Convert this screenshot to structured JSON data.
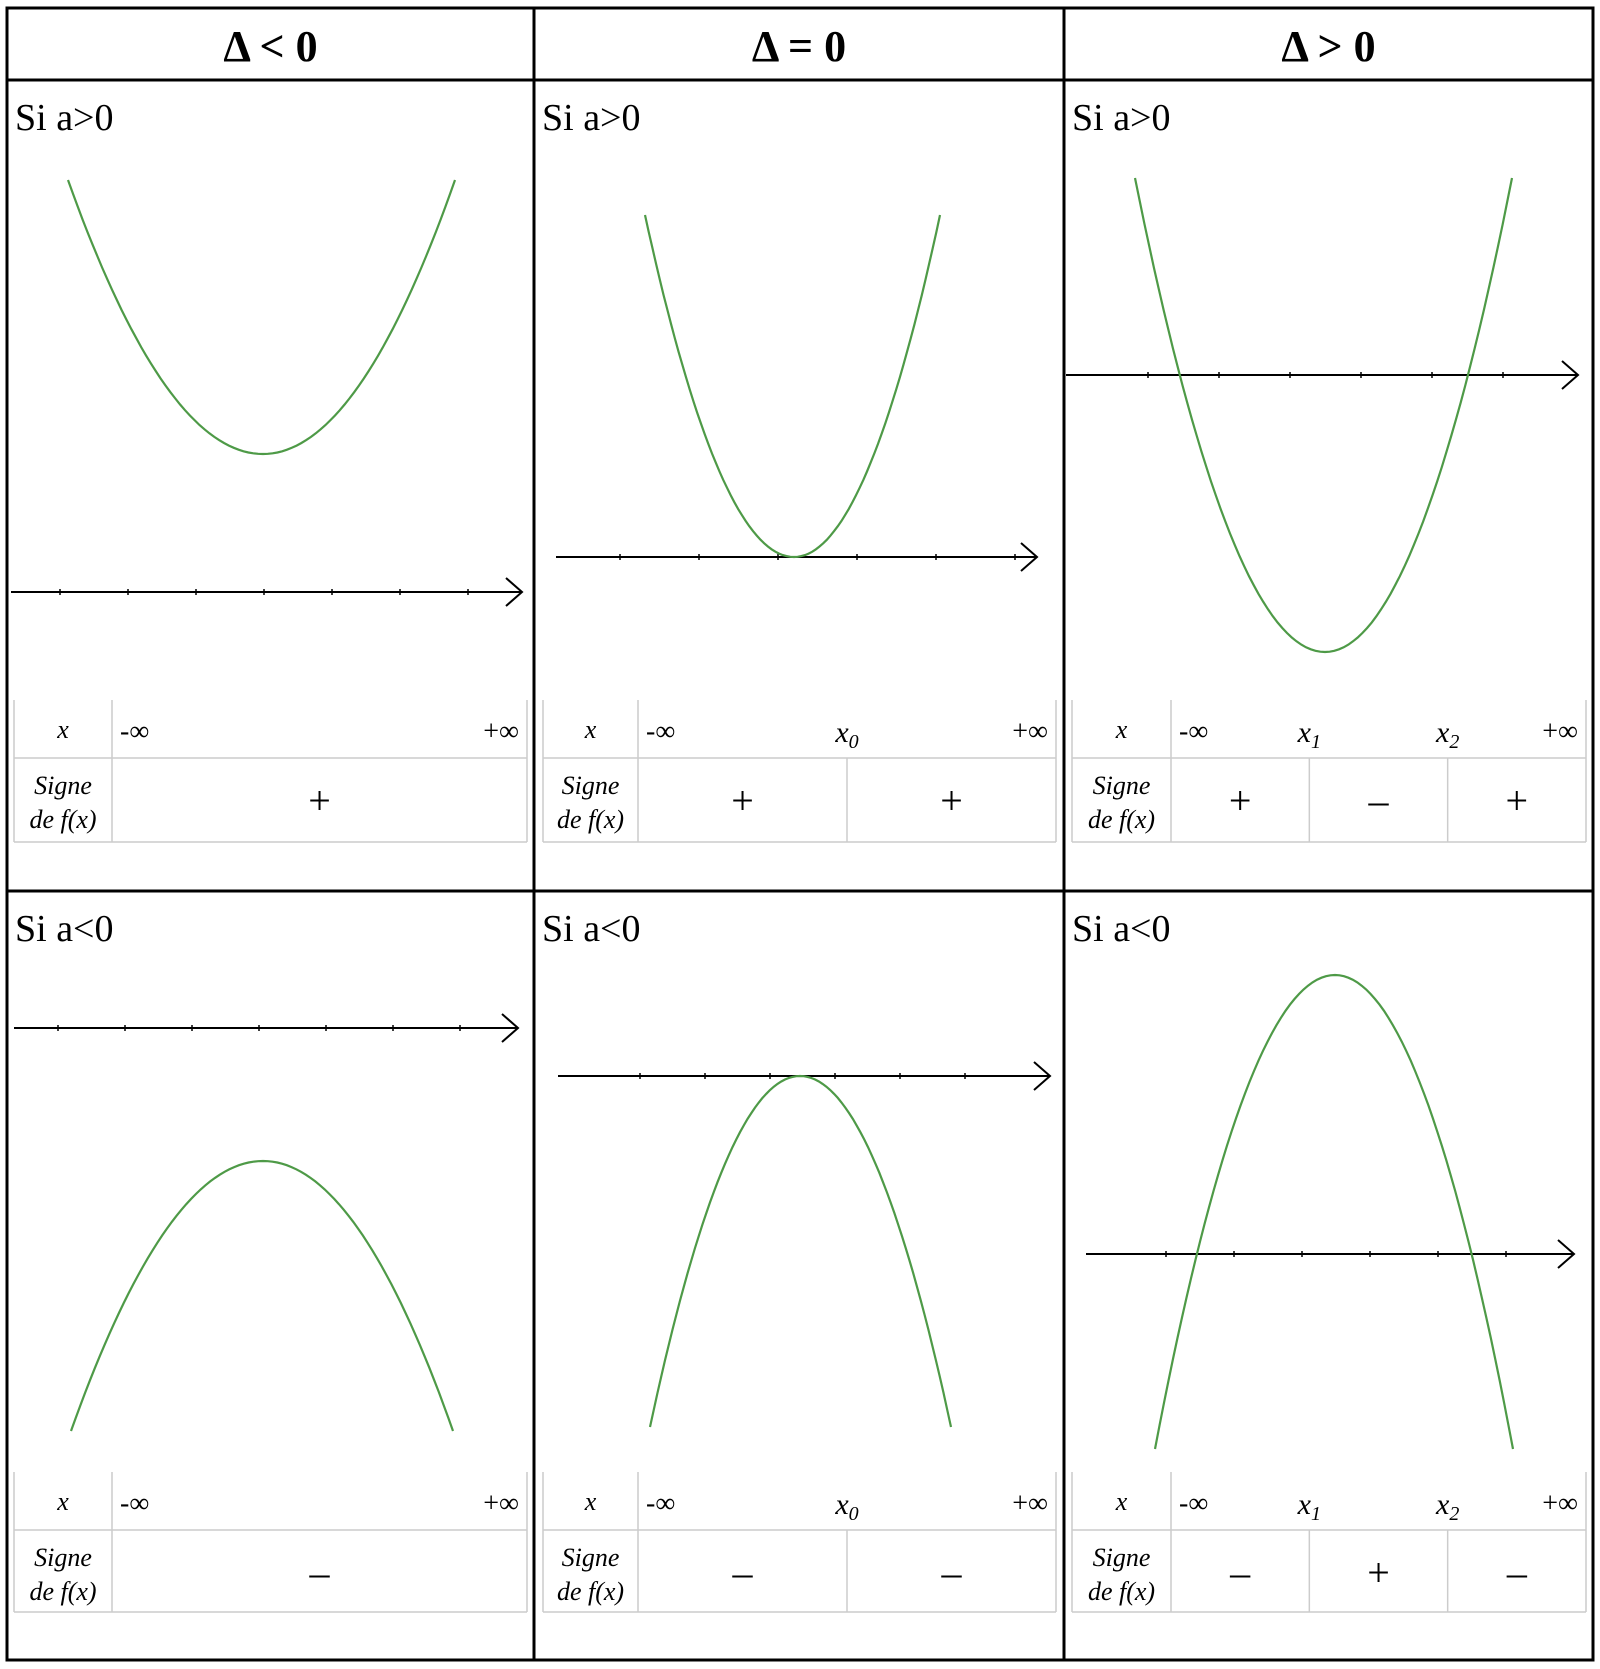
{
  "headers": [
    "Δ < 0",
    "Δ = 0",
    "Δ > 0"
  ],
  "panels": [
    {
      "condition": "Si a>0",
      "roots": [],
      "signs": [
        "+"
      ]
    },
    {
      "condition": "Si a>0",
      "roots": [
        {
          "base": "x",
          "sub": "0"
        }
      ],
      "signs": [
        "+",
        "+"
      ]
    },
    {
      "condition": "Si a>0",
      "roots": [
        {
          "base": "x",
          "sub": "1"
        },
        {
          "base": "x",
          "sub": "2"
        }
      ],
      "signs": [
        "+",
        "–",
        "+"
      ]
    },
    {
      "condition": "Si a<0",
      "roots": [],
      "signs": [
        "–"
      ]
    },
    {
      "condition": "Si a<0",
      "roots": [
        {
          "base": "x",
          "sub": "0"
        }
      ],
      "signs": [
        "–",
        "–"
      ]
    },
    {
      "condition": "Si a<0",
      "roots": [
        {
          "base": "x",
          "sub": "1"
        },
        {
          "base": "x",
          "sub": "2"
        }
      ],
      "signs": [
        "–",
        "+",
        "–"
      ]
    }
  ],
  "table": {
    "x_label": "x",
    "sign_label_line1": "Signe",
    "sign_label_line2": "de f(x)",
    "neg_inf": "-∞",
    "pos_inf": "+∞"
  },
  "colors": {
    "curve": "#4e9a47",
    "grid": "#cccccc",
    "border": "#000000",
    "axis": "#000000"
  }
}
